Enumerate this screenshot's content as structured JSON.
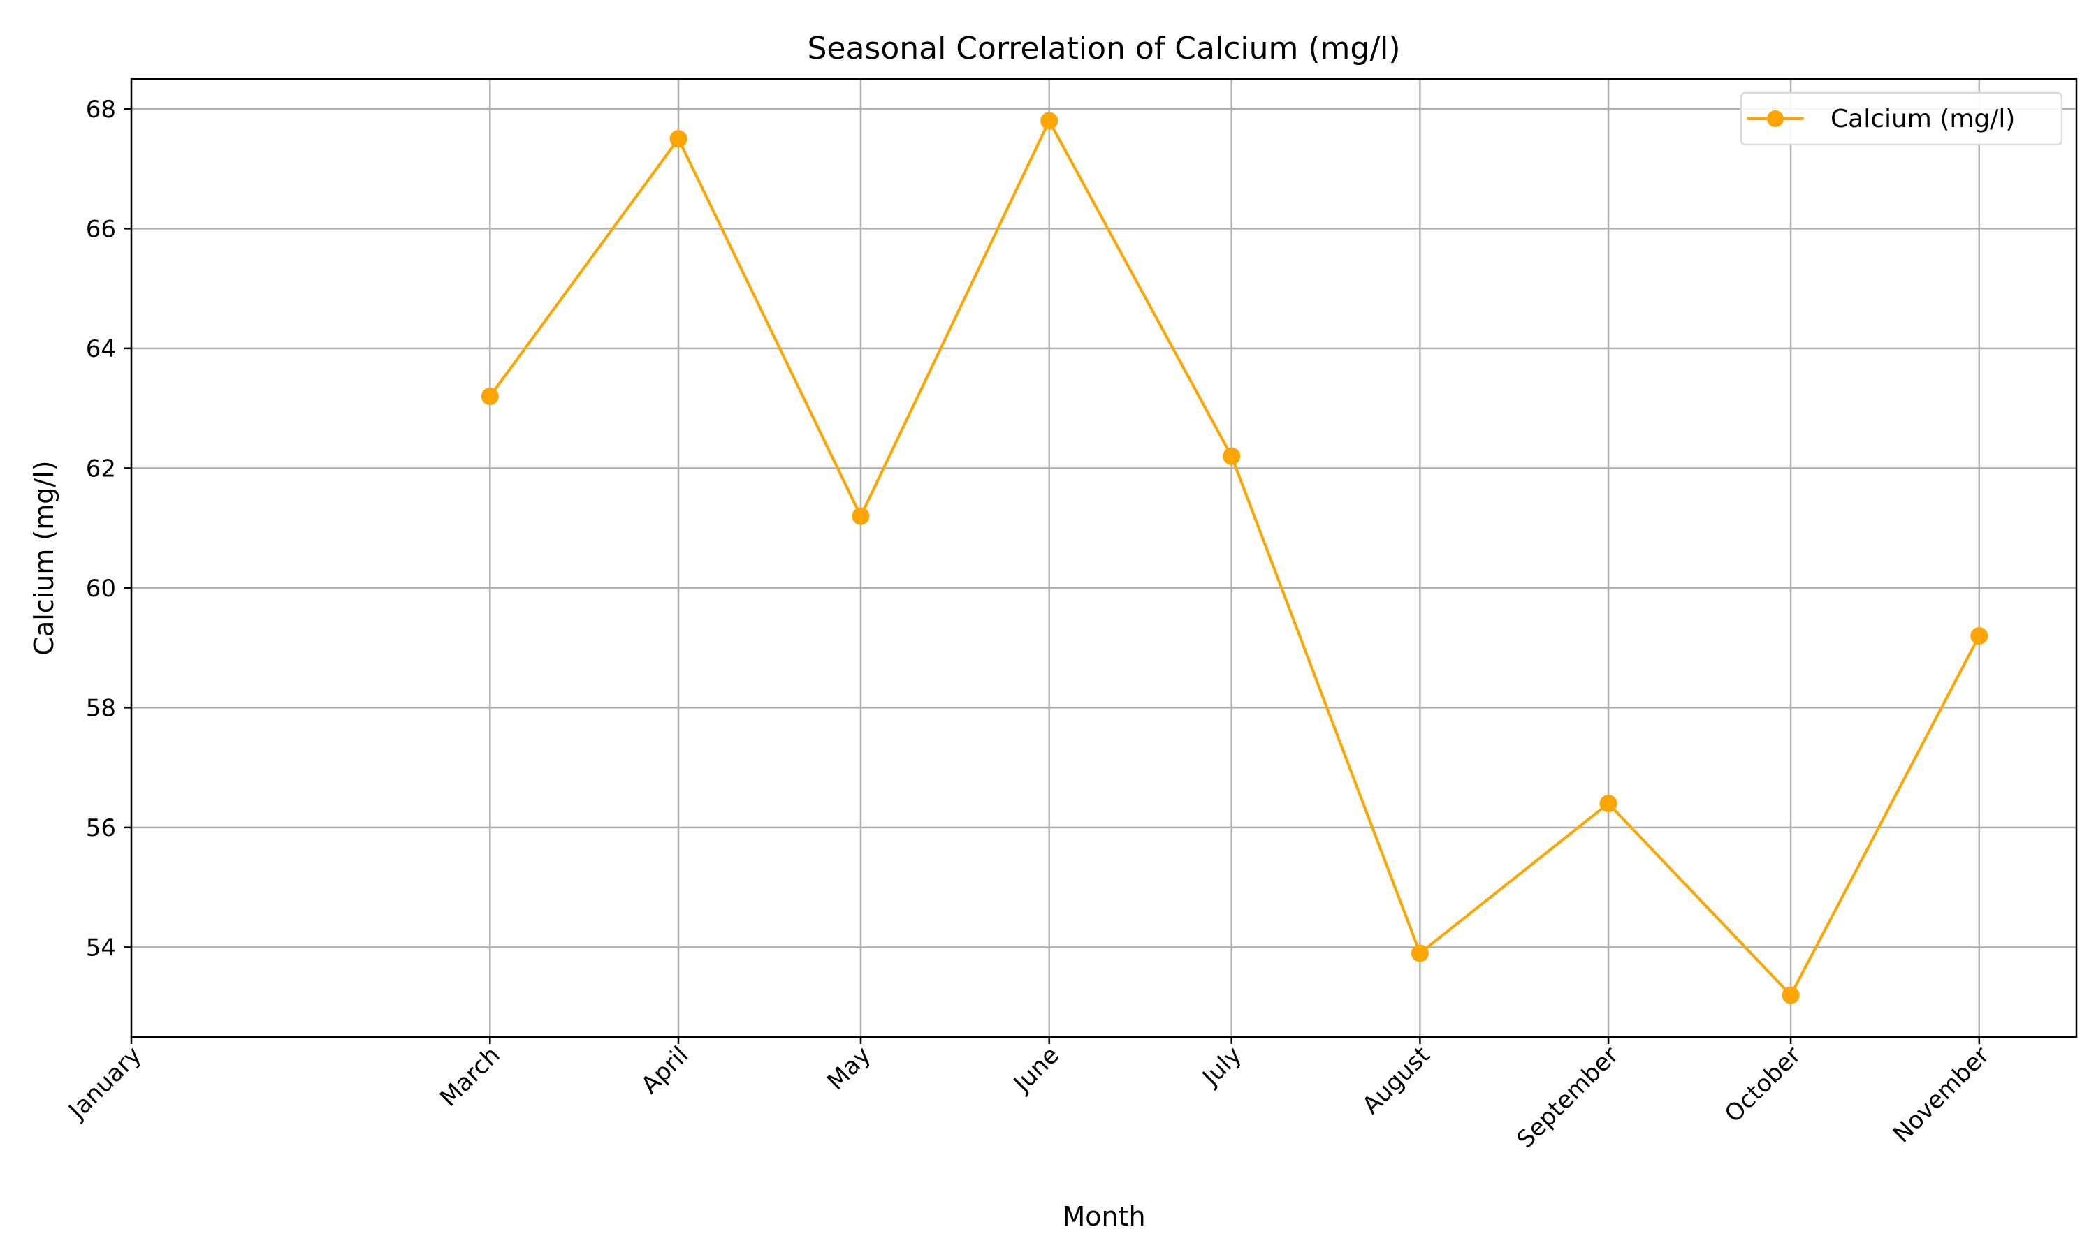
{
  "chart_data": {
    "type": "line",
    "title": "Seasonal Correlation of Calcium (mg/l)",
    "xlabel": "Month",
    "ylabel": "Calcium (mg/l)",
    "x_axis_type": "date",
    "x_tick_labels": [
      {
        "label": "January",
        "date": "2023-01-01"
      },
      {
        "label": "March",
        "date": "2023-03-01"
      },
      {
        "label": "April",
        "date": "2023-04-01"
      },
      {
        "label": "May",
        "date": "2023-05-01"
      },
      {
        "label": "June",
        "date": "2023-06-01"
      },
      {
        "label": "July",
        "date": "2023-07-01"
      },
      {
        "label": "August",
        "date": "2023-08-01"
      },
      {
        "label": "September",
        "date": "2023-09-01"
      },
      {
        "label": "October",
        "date": "2023-10-01"
      },
      {
        "label": "November",
        "date": "2023-11-01"
      }
    ],
    "x_range": [
      "2023-01-01",
      "2023-11-17"
    ],
    "ylim": [
      52.5,
      68.5
    ],
    "y_ticks": [
      54,
      56,
      58,
      60,
      62,
      64,
      66,
      68
    ],
    "grid": true,
    "legend_position": "top-right",
    "series": [
      {
        "name": "Calcium (mg/l)",
        "color": "#FFA500",
        "marker": "circle",
        "x": [
          "2023-03-01",
          "2023-04-01",
          "2023-05-01",
          "2023-06-01",
          "2023-07-01",
          "2023-08-01",
          "2023-09-01",
          "2023-10-01",
          "2023-11-01"
        ],
        "values": [
          63.2,
          67.5,
          61.2,
          67.8,
          62.2,
          53.9,
          56.4,
          53.2,
          59.2
        ]
      }
    ]
  },
  "colors": {
    "background": "#ffffff",
    "grid": "#b0b0b0",
    "axis": "#000000",
    "series": "#FFA500",
    "legend_border": "#d9d9d9"
  }
}
